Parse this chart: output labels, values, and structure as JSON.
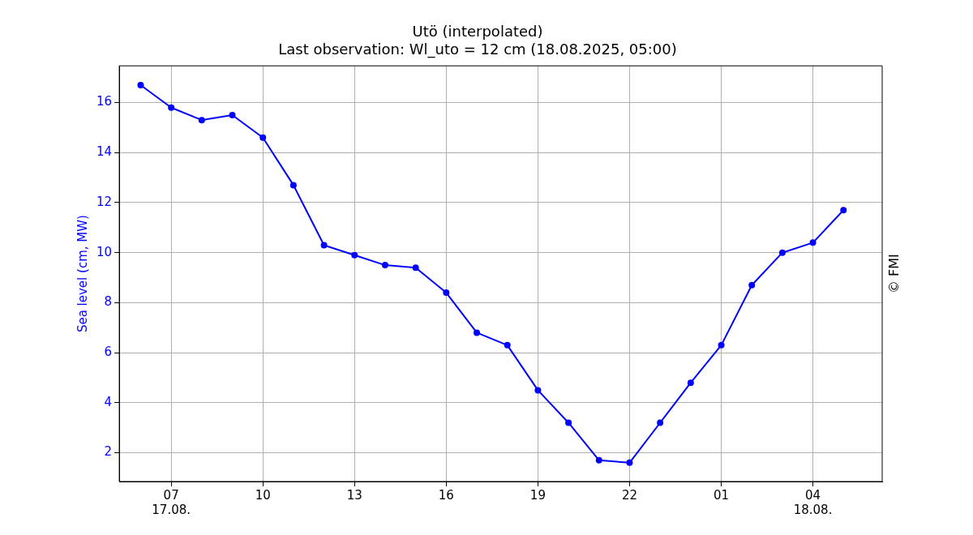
{
  "chart_data": {
    "type": "line",
    "title": "Utö (interpolated)",
    "subtitle": "Last observation: Wl_uto = 12 cm (18.08.2025, 05:00)",
    "ylabel": "Sea level (cm, MW)",
    "x": [
      "2025-08-17T06:00",
      "2025-08-17T07:00",
      "2025-08-17T08:00",
      "2025-08-17T09:00",
      "2025-08-17T10:00",
      "2025-08-17T11:00",
      "2025-08-17T12:00",
      "2025-08-17T13:00",
      "2025-08-17T14:00",
      "2025-08-17T15:00",
      "2025-08-17T16:00",
      "2025-08-17T17:00",
      "2025-08-17T18:00",
      "2025-08-17T19:00",
      "2025-08-17T20:00",
      "2025-08-17T21:00",
      "2025-08-17T22:00",
      "2025-08-17T23:00",
      "2025-08-18T00:00",
      "2025-08-18T01:00",
      "2025-08-18T02:00",
      "2025-08-18T03:00",
      "2025-08-18T04:00",
      "2025-08-18T05:00"
    ],
    "series": [
      {
        "color": "#0000ff",
        "values": [
          16.7,
          15.8,
          15.3,
          15.5,
          14.6,
          12.7,
          10.3,
          9.9,
          9.5,
          9.4,
          8.4,
          6.8,
          6.3,
          4.5,
          3.2,
          1.7,
          1.6,
          3.2,
          4.8,
          6.3,
          8.7,
          10.0,
          10.4,
          11.7
        ]
      }
    ],
    "xlim": [
      "2025-08-17T05:18",
      "2025-08-18T06:16"
    ],
    "xticks": [
      {
        "value": "2025-08-17T07:00",
        "label": "07\n17.08."
      },
      {
        "value": "2025-08-17T10:00",
        "label": "10"
      },
      {
        "value": "2025-08-17T13:00",
        "label": "13"
      },
      {
        "value": "2025-08-17T16:00",
        "label": "16"
      },
      {
        "value": "2025-08-17T19:00",
        "label": "19"
      },
      {
        "value": "2025-08-17T22:00",
        "label": "22"
      },
      {
        "value": "2025-08-18T01:00",
        "label": "01"
      },
      {
        "value": "2025-08-18T04:00",
        "label": "04\n18.08."
      }
    ],
    "ylim": [
      0.85,
      17.47
    ],
    "yticks": [
      2,
      4,
      6,
      8,
      10,
      12,
      14,
      16
    ],
    "grid": true,
    "marker": "circle",
    "line_style": "solid",
    "legend": false,
    "annotations": [
      "© FMI"
    ]
  }
}
